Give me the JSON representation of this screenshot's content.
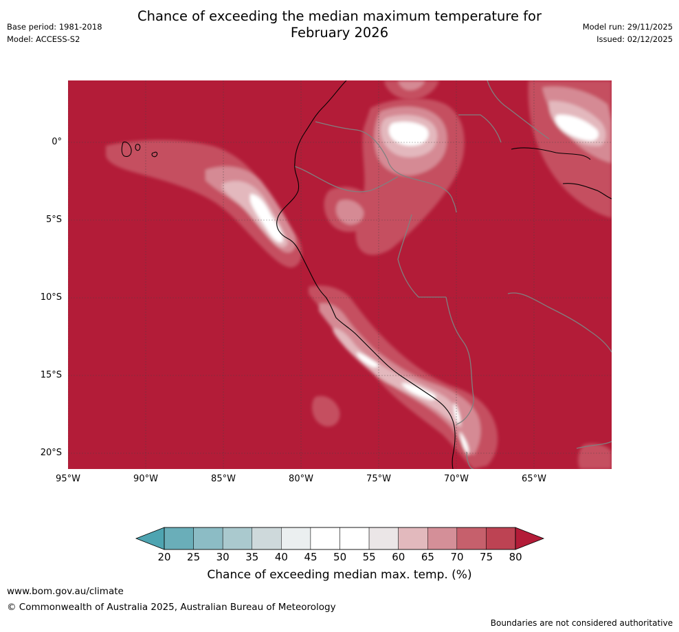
{
  "title_line1": "Chance of exceeding the median maximum temperature for",
  "title_line2": "February 2026",
  "meta": {
    "base_period": "Base period: 1981-2018",
    "model": "Model: ACCESS-S2",
    "model_run": "Model run: 29/11/2025",
    "issued": "Issued: 02/12/2025"
  },
  "map": {
    "lat_ticks": [
      "0°",
      "5°S",
      "10°S",
      "15°S",
      "20°S"
    ],
    "lon_ticks": [
      "95°W",
      "90°W",
      "85°W",
      "80°W",
      "75°W",
      "70°W",
      "65°W"
    ],
    "colors": {
      "ocean_base": "#b31c38",
      "c70": "#c55060",
      "c65": "#d58a94",
      "c60": "#e3b8bd",
      "c55": "#ede5e6",
      "c50": "#ffffff"
    }
  },
  "colorbar": {
    "ticks": [
      "20",
      "25",
      "30",
      "35",
      "40",
      "45",
      "50",
      "55",
      "60",
      "65",
      "70",
      "75",
      "80"
    ],
    "colors": [
      "#6aaeb9",
      "#8cbcc5",
      "#aac9ce",
      "#ced9db",
      "#ebeff0",
      "#ffffff",
      "#ffffff",
      "#ebe6e7",
      "#e2b9bd",
      "#d48f98",
      "#c6606c",
      "#bd4353"
    ],
    "low_color": "#4ea4b1",
    "high_color": "#b31c38",
    "label": "Chance of exceeding median max. temp. (%)"
  },
  "footer": {
    "website": "www.bom.gov.au/climate",
    "copyright": "© Commonwealth of Australia 2025, Australian Bureau of Meteorology",
    "disclaimer": "Boundaries are not considered authoritative"
  }
}
